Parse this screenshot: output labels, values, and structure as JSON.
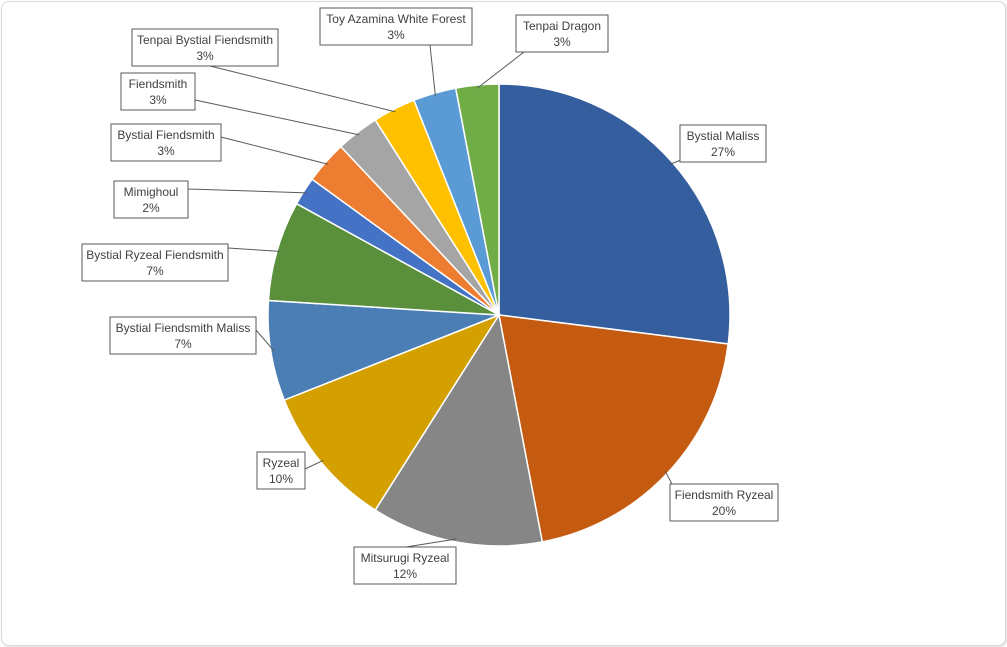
{
  "chart_data": {
    "type": "pie",
    "title": "",
    "start": "12 o'clock, clockwise",
    "slices": [
      {
        "label": "Bystial Maliss",
        "percent_label": "27%",
        "value": 27,
        "color": "#355E9E"
      },
      {
        "label": "Fiendsmith Ryzeal",
        "percent_label": "20%",
        "value": 20,
        "color": "#C55A11"
      },
      {
        "label": "Mitsurugi Ryzeal",
        "percent_label": "12%",
        "value": 12,
        "color": "#868686"
      },
      {
        "label": "Ryzeal",
        "percent_label": "10%",
        "value": 10,
        "color": "#D4A000"
      },
      {
        "label": "Bystial Fiendsmith Maliss",
        "percent_label": "7%",
        "value": 7,
        "color": "#4A7EB4"
      },
      {
        "label": "Bystial Ryzeal Fiendsmith",
        "percent_label": "7%",
        "value": 7,
        "color": "#5A8F3C"
      },
      {
        "label": "Mimighoul",
        "percent_label": "2%",
        "value": 2,
        "color": "#4472C4"
      },
      {
        "label": "Bystial Fiendsmith",
        "percent_label": "3%",
        "value": 3,
        "color": "#ED7D31"
      },
      {
        "label": "Fiendsmith",
        "percent_label": "3%",
        "value": 3,
        "color": "#A5A5A5"
      },
      {
        "label": "Tenpai Bystial Fiendsmith",
        "percent_label": "3%",
        "value": 3,
        "color": "#FFC000"
      },
      {
        "label": "Toy Azamina White Forest",
        "percent_label": "3%",
        "value": 3,
        "color": "#5B9BD5"
      },
      {
        "label": "Tenpai Dragon",
        "percent_label": "3%",
        "value": 3,
        "color": "#70AD47"
      }
    ]
  }
}
